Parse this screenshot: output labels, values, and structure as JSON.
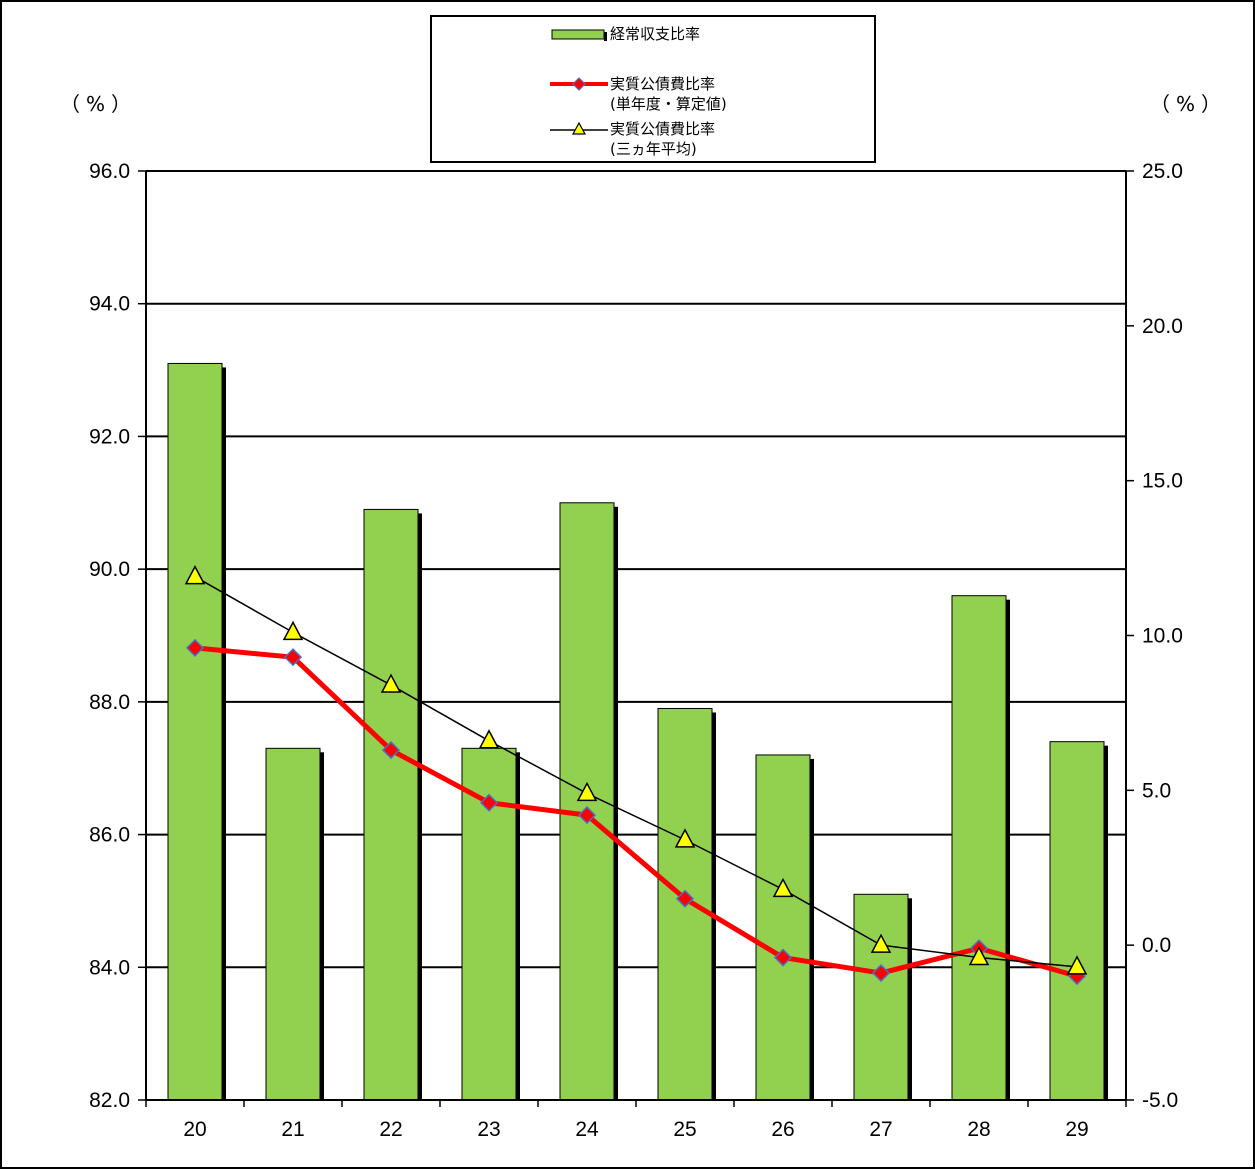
{
  "units": {
    "left": "（%）",
    "right": "（%）"
  },
  "legend": {
    "item1": "経常収支比率",
    "item2_line1": "実質公債費比率",
    "item2_line2": "(単年度・算定値)",
    "item3_line1": "実質公債費比率",
    "item3_line2": "(三ヵ年平均)"
  },
  "colors": {
    "bar": "#92d050",
    "bar_shadow": "#000000",
    "series2_line": "#ff0000",
    "series2_marker": "#ff0000",
    "series2_marker_edge": "#4472c4",
    "series3_line": "#000000",
    "series3_marker": "#ffff00"
  },
  "chart_data": {
    "type": "bar",
    "categories": [
      "20",
      "21",
      "22",
      "23",
      "24",
      "25",
      "26",
      "27",
      "28",
      "29"
    ],
    "grid": true,
    "legend_position": "top-center",
    "y_left": {
      "min": 82.0,
      "max": 96.0,
      "ticks": [
        "82.0",
        "84.0",
        "86.0",
        "88.0",
        "90.0",
        "92.0",
        "94.0",
        "96.0"
      ]
    },
    "y_right": {
      "min": -5.0,
      "max": 25.0,
      "ticks": [
        "-5.0",
        "0.0",
        "5.0",
        "10.0",
        "15.0",
        "20.0",
        "25.0"
      ]
    },
    "series": [
      {
        "name": "経常収支比率",
        "type": "bar",
        "axis": "left",
        "values": [
          93.1,
          87.3,
          90.9,
          87.3,
          91.0,
          87.9,
          87.2,
          85.1,
          89.6,
          87.4
        ]
      },
      {
        "name": "実質公債費比率(単年度・算定値)",
        "type": "line",
        "axis": "right",
        "values": [
          9.6,
          9.3,
          6.3,
          4.6,
          4.2,
          1.5,
          -0.4,
          -0.9,
          -0.1,
          -1.0
        ]
      },
      {
        "name": "実質公債費比率(三ヵ年平均)",
        "type": "line",
        "axis": "right",
        "values": [
          11.9,
          10.1,
          8.4,
          6.6,
          4.9,
          3.4,
          1.8,
          0.0,
          -0.4,
          -0.7
        ]
      }
    ]
  }
}
